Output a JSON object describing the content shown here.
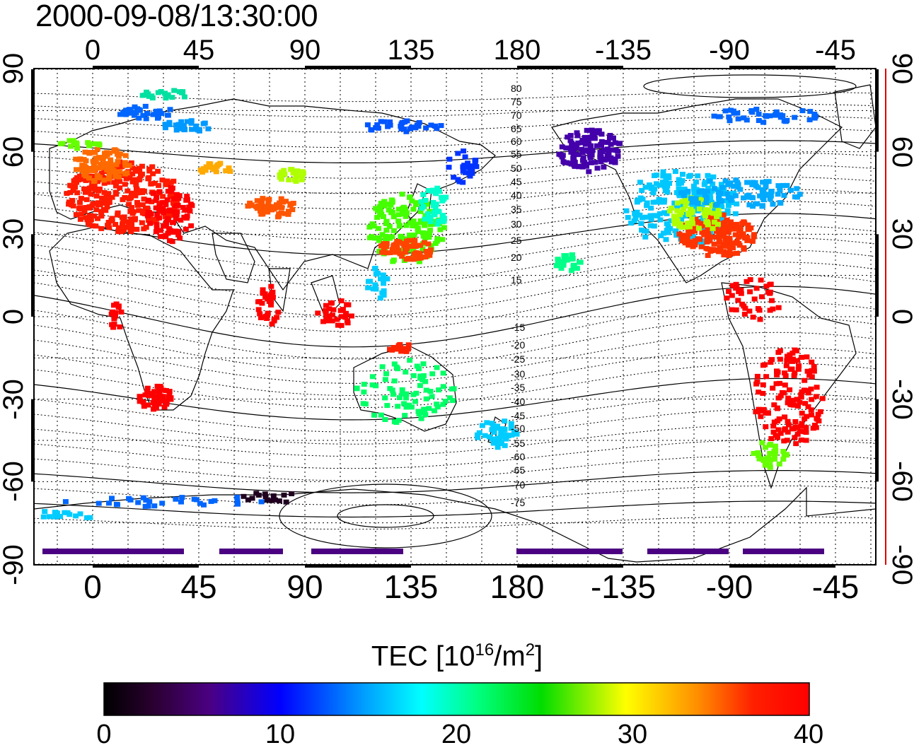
{
  "timestamp": "2000-09-08/13:30:00",
  "map": {
    "top_longitude_labels": [
      "0",
      "45",
      "90",
      "135",
      "180",
      "-135",
      "-90",
      "-45"
    ],
    "bottom_longitude_labels": [
      "0",
      "45",
      "90",
      "135",
      "180",
      "-135",
      "-90",
      "-45"
    ],
    "left_latitude_labels": [
      "90",
      "60",
      "30",
      "0",
      "-30",
      "-60",
      "-90"
    ],
    "right_latitude_labels": [
      "90",
      "60",
      "30",
      "0",
      "-30",
      "-60",
      "-90"
    ],
    "magnetic_latitude_labels": [
      "80",
      "75",
      "70",
      "65",
      "60",
      "55",
      "50",
      "45",
      "40",
      "35",
      "30",
      "25",
      "20",
      "15",
      "-15",
      "-20",
      "-25",
      "-30",
      "-35",
      "-40",
      "-45",
      "-50",
      "-55",
      "-60",
      "-65",
      "-70",
      "-75"
    ],
    "grid": true,
    "projection": "equirectangular"
  },
  "colorbar": {
    "title_prefix": "TEC  [10",
    "title_sup1": "16",
    "title_mid": "/m",
    "title_sup2": "2",
    "title_suffix": "]",
    "min": 0,
    "max": 40,
    "tick_labels": [
      "0",
      "10",
      "20",
      "30",
      "40"
    ],
    "colormap": "rainbow (black-purple-blue-cyan-green-yellow-orange-red)"
  }
}
